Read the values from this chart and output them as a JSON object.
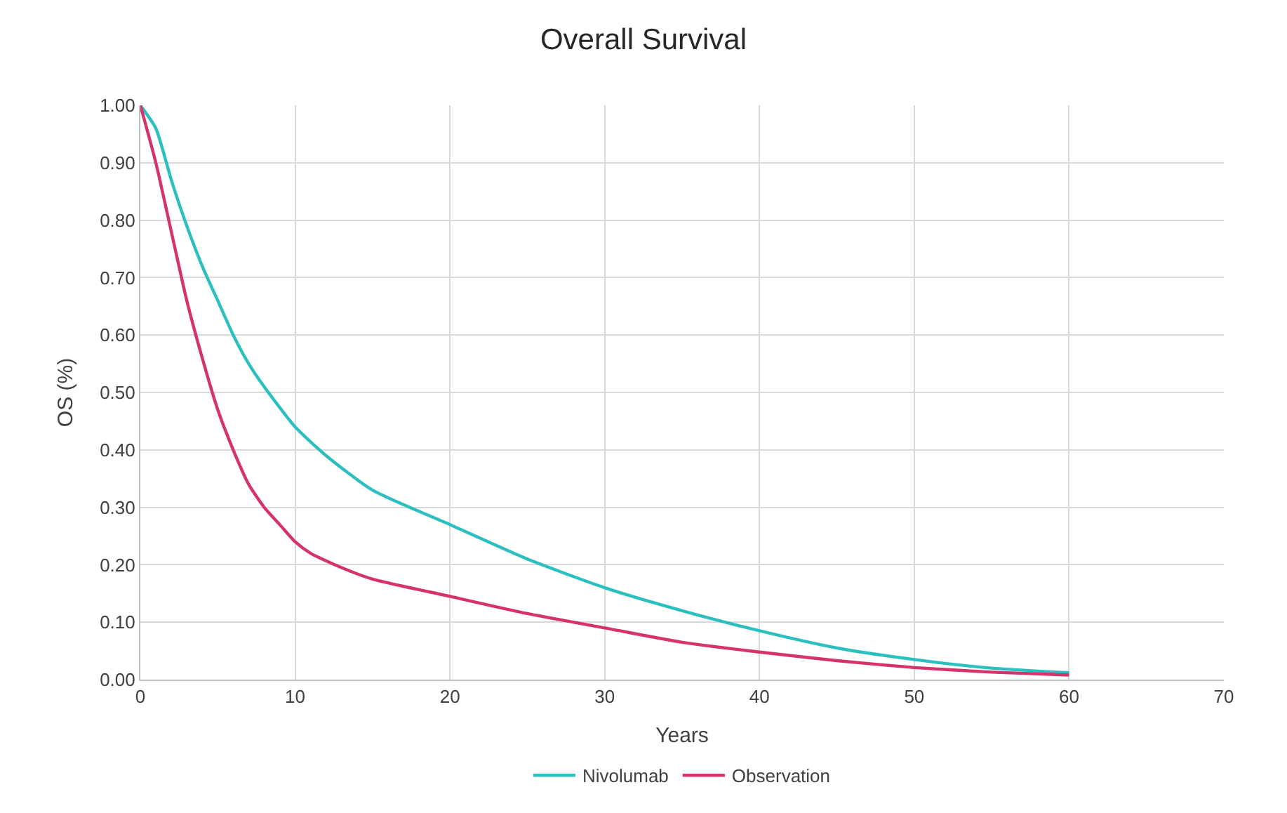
{
  "chart_data": {
    "type": "line",
    "title": "Overall Survival",
    "xlabel": "Years",
    "ylabel": "OS (%)",
    "xlim": [
      0,
      70
    ],
    "xticks": [
      0,
      10,
      20,
      30,
      40,
      50,
      60,
      70
    ],
    "ylim": [
      0,
      1
    ],
    "yticks": [
      {
        "value": 0,
        "label": "0.00"
      },
      {
        "value": 0.1,
        "label": "0.10"
      },
      {
        "value": 0.2,
        "label": "0.20"
      },
      {
        "value": 0.3,
        "label": "0.30"
      },
      {
        "value": 0.4,
        "label": "0.40"
      },
      {
        "value": 0.5,
        "label": "0.50"
      },
      {
        "value": 0.6,
        "label": "0.60"
      },
      {
        "value": 0.7,
        "label": "0.70"
      },
      {
        "value": 0.8,
        "label": "0.80"
      },
      {
        "value": 0.9,
        "label": "0.90"
      },
      {
        "value": 1,
        "label": "1.00"
      }
    ],
    "grid": true,
    "legend": "bottom",
    "marker": "none",
    "line_style": "solid",
    "series": [
      {
        "name": "Nivolumab",
        "color": "#2bbfc0",
        "x": [
          0,
          1,
          2,
          3,
          4,
          5,
          6,
          7,
          8,
          10,
          12,
          15,
          20,
          25,
          30,
          35,
          40,
          45,
          50,
          55,
          60
        ],
        "values": [
          1.0,
          0.96,
          0.87,
          0.79,
          0.72,
          0.66,
          0.6,
          0.55,
          0.51,
          0.44,
          0.39,
          0.33,
          0.27,
          0.21,
          0.16,
          0.12,
          0.085,
          0.055,
          0.035,
          0.02,
          0.012
        ]
      },
      {
        "name": "Observation",
        "color": "#d6336e",
        "x": [
          0,
          1,
          2,
          3,
          4,
          5,
          6,
          7,
          8,
          9,
          10,
          11,
          13,
          15,
          20,
          25,
          30,
          35,
          40,
          45,
          50,
          55,
          60
        ],
        "values": [
          1.0,
          0.9,
          0.78,
          0.66,
          0.56,
          0.47,
          0.4,
          0.34,
          0.3,
          0.27,
          0.24,
          0.22,
          0.195,
          0.175,
          0.145,
          0.115,
          0.09,
          0.065,
          0.048,
          0.033,
          0.021,
          0.013,
          0.008
        ]
      }
    ]
  }
}
